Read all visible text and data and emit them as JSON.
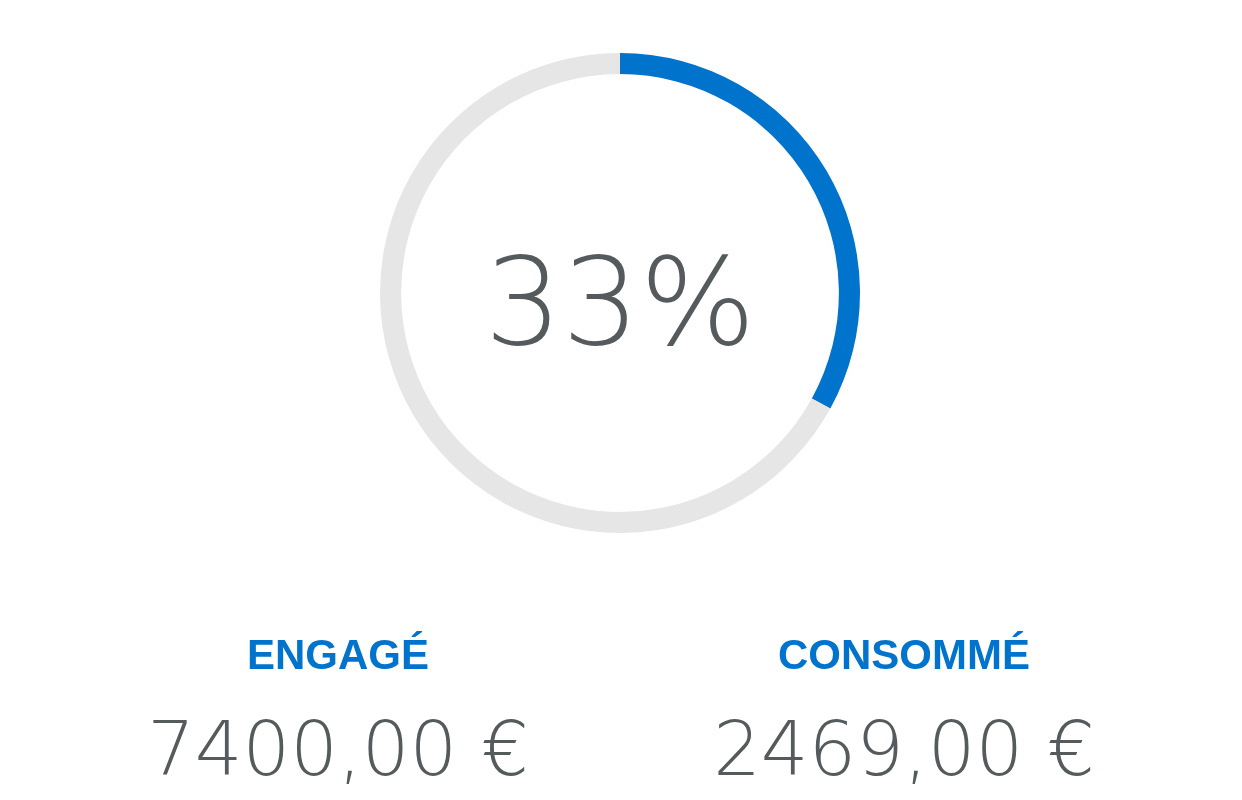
{
  "chart_data": {
    "type": "donut",
    "categories": [
      null,
      null
    ],
    "values": [
      33,
      67
    ],
    "colors": [
      "#0074cc",
      "#e6e6e6"
    ],
    "annotations": [
      "33%",
      "ENGAGÉ",
      "7400,00 €",
      "CONSOMMÉ",
      "2469,00 €"
    ]
  }
}
